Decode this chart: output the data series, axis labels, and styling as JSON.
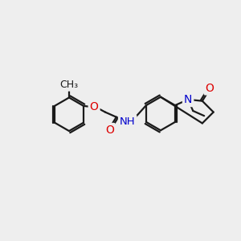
{
  "bg_color": "#eeeeee",
  "bond_color": "#1a1a1a",
  "atom_colors": {
    "O": "#dd0000",
    "N": "#0000cc",
    "H": "#008888",
    "C": "#1a1a1a"
  },
  "font_size": 9.5,
  "lw": 1.6
}
